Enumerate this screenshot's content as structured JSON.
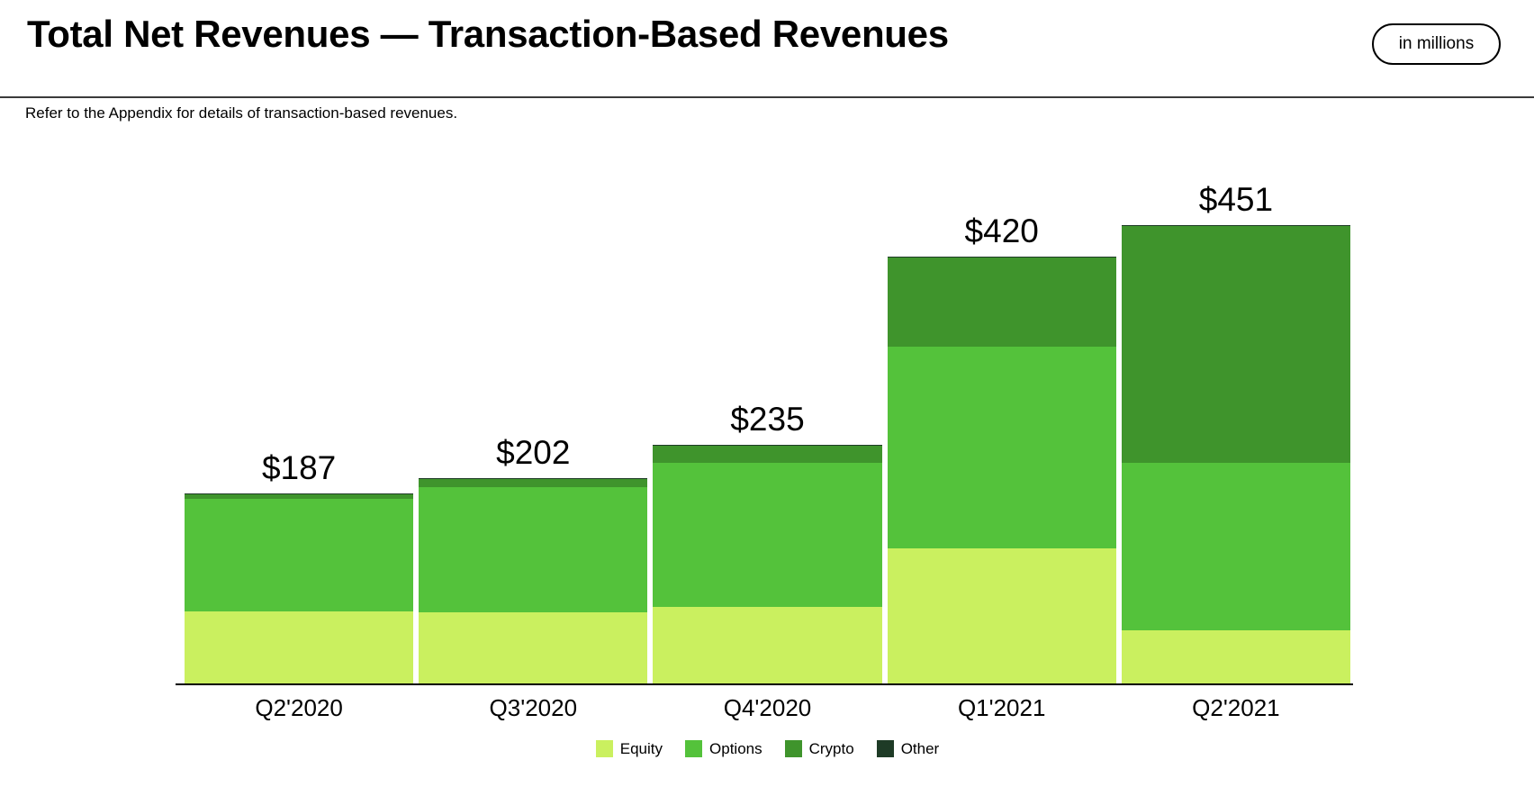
{
  "header": {
    "title": "Total Net Revenues — Transaction-Based Revenues",
    "unit_badge": "in millions"
  },
  "subtitle": "Refer to the Appendix for details of transaction-based revenues.",
  "chart_data": {
    "type": "bar",
    "stacked": true,
    "title": "Total Net Revenues — Transaction-Based Revenues",
    "unit": "USD millions",
    "categories": [
      "Q2'2020",
      "Q3'2020",
      "Q4'2020",
      "Q1'2021",
      "Q2'2021"
    ],
    "series": [
      {
        "name": "Equity",
        "color": "#caf05f",
        "values": [
          71,
          70,
          75,
          133,
          52
        ]
      },
      {
        "name": "Options",
        "color": "#54c23b",
        "values": [
          111,
          123,
          142,
          198,
          165
        ]
      },
      {
        "name": "Crypto",
        "color": "#3f942c",
        "values": [
          4,
          8,
          17,
          88,
          233
        ]
      },
      {
        "name": "Other",
        "color": "#1e3b26",
        "values": [
          1,
          1,
          1,
          1,
          1
        ]
      }
    ],
    "totals": [
      187,
      202,
      235,
      420,
      451
    ],
    "total_labels": [
      "$187",
      "$202",
      "$235",
      "$420",
      "$451"
    ],
    "ylim": [
      0,
      451
    ],
    "grid": false,
    "legend_position": "bottom",
    "axis_color": "#000000"
  }
}
